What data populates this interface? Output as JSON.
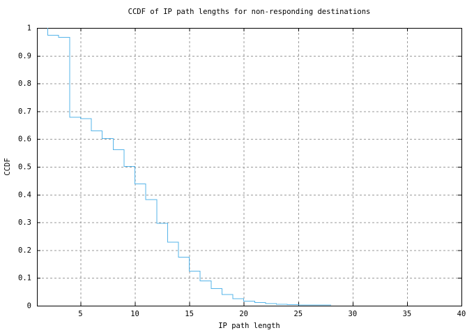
{
  "window": {
    "background": "#ffffff"
  },
  "chart_data": {
    "type": "line",
    "subtype": "step-staircase-ccdf",
    "title": "CCDF of IP path lengths for non-responding destinations",
    "xlabel": "IP path length",
    "ylabel": "CCDF",
    "xlim": [
      1,
      40
    ],
    "ylim": [
      0,
      1
    ],
    "xticks": [
      5,
      10,
      15,
      20,
      25,
      30,
      35,
      40
    ],
    "yticks": [
      0,
      0.1,
      0.2,
      0.3,
      0.4,
      0.5,
      0.6,
      0.7,
      0.8,
      0.9,
      1
    ],
    "ytick_labels": [
      "0",
      "0.1",
      "0.2",
      "0.3",
      "0.4",
      "0.5",
      "0.6",
      "0.7",
      "0.8",
      "0.9",
      "1"
    ],
    "grid": true,
    "grid_style": "dashed",
    "legend_position": "none",
    "line_color": "#56B4E9",
    "axis_color": "#000000",
    "grid_color": "#9a9a9a",
    "start_point": [
      2,
      1.0
    ],
    "steps": [
      [
        2,
        0.974
      ],
      [
        3,
        0.966
      ],
      [
        4,
        0.678
      ],
      [
        5,
        0.673
      ],
      [
        6,
        0.63
      ],
      [
        7,
        0.602
      ],
      [
        8,
        0.562
      ],
      [
        9,
        0.501
      ],
      [
        10,
        0.438
      ],
      [
        11,
        0.382
      ],
      [
        12,
        0.296
      ],
      [
        13,
        0.229
      ],
      [
        14,
        0.175
      ],
      [
        15,
        0.125
      ],
      [
        16,
        0.089
      ],
      [
        17,
        0.061
      ],
      [
        18,
        0.04
      ],
      [
        19,
        0.025
      ],
      [
        20,
        0.016
      ],
      [
        21,
        0.011
      ],
      [
        22,
        0.008
      ],
      [
        23,
        0.005
      ],
      [
        24,
        0.004
      ],
      [
        25,
        0.003
      ],
      [
        26,
        0.0025
      ],
      [
        27,
        0.002
      ],
      [
        28,
        0.0015
      ]
    ]
  }
}
